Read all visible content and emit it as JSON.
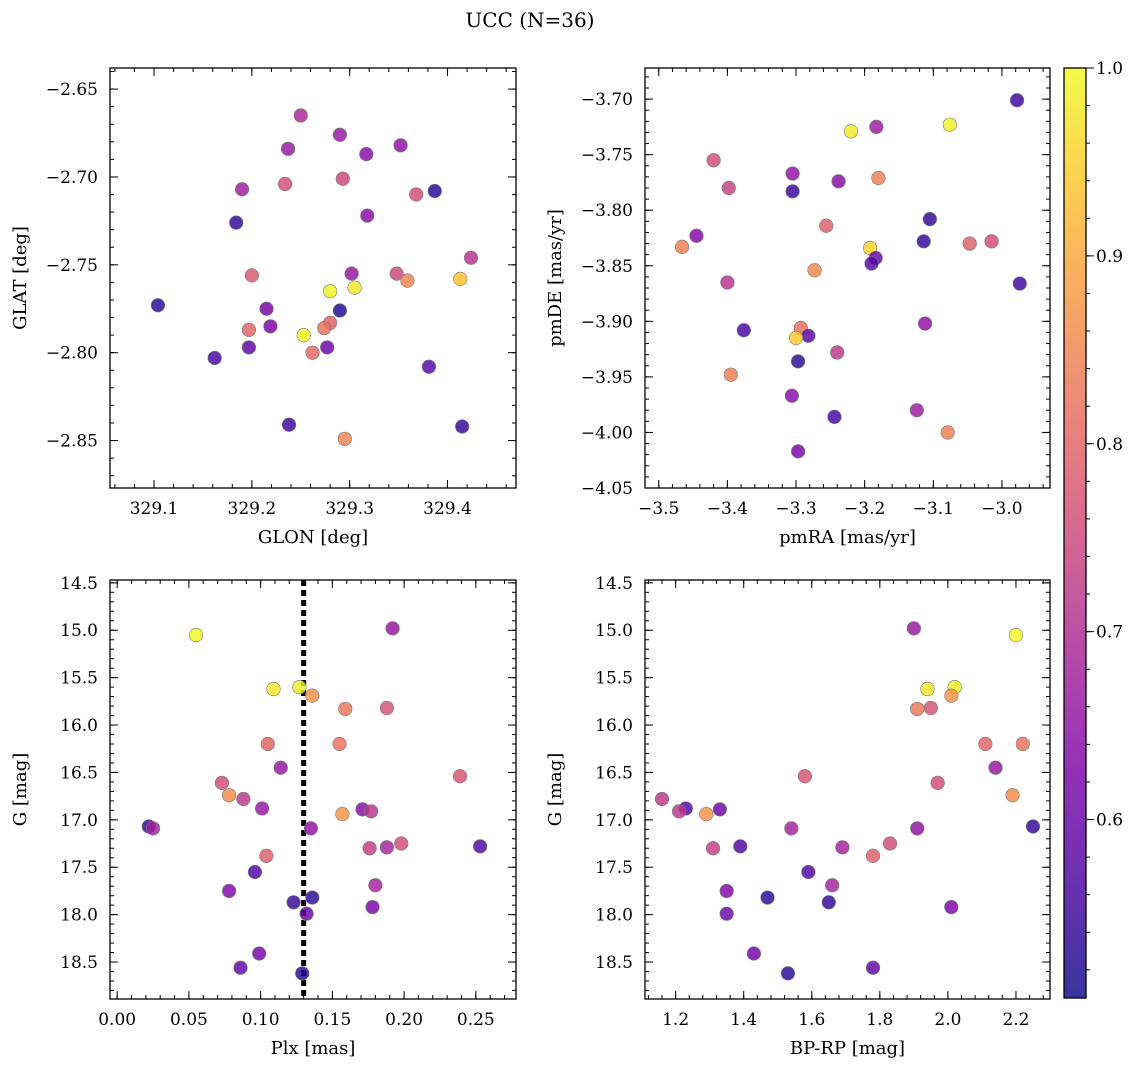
{
  "title": "UCC (N=36)",
  "colors": {
    "cmap": "plasma",
    "marker_edge": "#7a7a7a",
    "vline": "#000000"
  },
  "chart_data": [
    {
      "type": "scatter",
      "xlabel": "GLON [deg]",
      "ylabel": "GLAT [deg]",
      "xlim": [
        329.055,
        329.47
      ],
      "ylim": [
        -2.877,
        -2.638
      ],
      "xticks": [
        329.1,
        329.2,
        329.3,
        329.4
      ],
      "xtick_labels": [
        "329.1",
        "329.2",
        "329.3",
        "329.4"
      ],
      "yticks": [
        -2.65,
        -2.7,
        -2.75,
        -2.8,
        -2.85
      ],
      "ytick_labels": [
        "−2.65",
        "−2.70",
        "−2.75",
        "−2.80",
        "−2.85"
      ],
      "points": [
        {
          "x": 329.25,
          "y": -2.665,
          "c": 0.69
        },
        {
          "x": 329.237,
          "y": -2.684,
          "c": 0.66
        },
        {
          "x": 329.29,
          "y": -2.676,
          "c": 0.66
        },
        {
          "x": 329.317,
          "y": -2.687,
          "c": 0.64
        },
        {
          "x": 329.352,
          "y": -2.682,
          "c": 0.65
        },
        {
          "x": 329.19,
          "y": -2.707,
          "c": 0.67
        },
        {
          "x": 329.234,
          "y": -2.704,
          "c": 0.76
        },
        {
          "x": 329.293,
          "y": -2.701,
          "c": 0.75
        },
        {
          "x": 329.368,
          "y": -2.71,
          "c": 0.76
        },
        {
          "x": 329.387,
          "y": -2.708,
          "c": 0.53
        },
        {
          "x": 329.184,
          "y": -2.726,
          "c": 0.54
        },
        {
          "x": 329.318,
          "y": -2.722,
          "c": 0.64
        },
        {
          "x": 329.424,
          "y": -2.746,
          "c": 0.71
        },
        {
          "x": 329.2,
          "y": -2.756,
          "c": 0.78
        },
        {
          "x": 329.302,
          "y": -2.755,
          "c": 0.66
        },
        {
          "x": 329.348,
          "y": -2.755,
          "c": 0.75
        },
        {
          "x": 329.359,
          "y": -2.759,
          "c": 0.85
        },
        {
          "x": 329.413,
          "y": -2.758,
          "c": 0.93
        },
        {
          "x": 329.305,
          "y": -2.763,
          "c": 0.98
        },
        {
          "x": 329.28,
          "y": -2.765,
          "c": 0.99
        },
        {
          "x": 329.104,
          "y": -2.773,
          "c": 0.53
        },
        {
          "x": 329.215,
          "y": -2.775,
          "c": 0.62
        },
        {
          "x": 329.29,
          "y": -2.776,
          "c": 0.52
        },
        {
          "x": 329.28,
          "y": -2.783,
          "c": 0.79
        },
        {
          "x": 329.274,
          "y": -2.786,
          "c": 0.82
        },
        {
          "x": 329.197,
          "y": -2.787,
          "c": 0.8
        },
        {
          "x": 329.219,
          "y": -2.785,
          "c": 0.62
        },
        {
          "x": 329.253,
          "y": -2.79,
          "c": 1.0
        },
        {
          "x": 329.197,
          "y": -2.797,
          "c": 0.58
        },
        {
          "x": 329.277,
          "y": -2.797,
          "c": 0.6
        },
        {
          "x": 329.262,
          "y": -2.8,
          "c": 0.81
        },
        {
          "x": 329.162,
          "y": -2.803,
          "c": 0.56
        },
        {
          "x": 329.381,
          "y": -2.808,
          "c": 0.58
        },
        {
          "x": 329.238,
          "y": -2.841,
          "c": 0.55
        },
        {
          "x": 329.415,
          "y": -2.842,
          "c": 0.54
        },
        {
          "x": 329.295,
          "y": -2.849,
          "c": 0.85
        }
      ]
    },
    {
      "type": "scatter",
      "xlabel": "pmRA [mas/yr]",
      "ylabel": "pmDE [mas/yr]",
      "xlim": [
        -3.52,
        -2.93
      ],
      "ylim": [
        -4.05,
        -3.672
      ],
      "xticks": [
        -3.5,
        -3.4,
        -3.3,
        -3.2,
        -3.1,
        -3.0
      ],
      "xtick_labels": [
        "−3.5",
        "−3.4",
        "−3.3",
        "−3.2",
        "−3.1",
        "−3.0"
      ],
      "yticks": [
        -3.7,
        -3.75,
        -3.8,
        -3.85,
        -3.9,
        -3.95,
        -4.0,
        -4.05
      ],
      "ytick_labels": [
        "−3.70",
        "−3.75",
        "−3.80",
        "−3.85",
        "−3.90",
        "−3.95",
        "−4.00",
        "−4.05"
      ],
      "points": [
        {
          "x": -2.978,
          "y": -3.701,
          "c": 0.55
        },
        {
          "x": -3.076,
          "y": -3.723,
          "c": 0.99
        },
        {
          "x": -3.22,
          "y": -3.729,
          "c": 0.98
        },
        {
          "x": -3.183,
          "y": -3.725,
          "c": 0.67
        },
        {
          "x": -3.42,
          "y": -3.755,
          "c": 0.76
        },
        {
          "x": -3.305,
          "y": -3.767,
          "c": 0.65
        },
        {
          "x": -3.238,
          "y": -3.774,
          "c": 0.64
        },
        {
          "x": -3.18,
          "y": -3.771,
          "c": 0.84
        },
        {
          "x": -3.398,
          "y": -3.78,
          "c": 0.74
        },
        {
          "x": -3.305,
          "y": -3.783,
          "c": 0.54
        },
        {
          "x": -3.105,
          "y": -3.808,
          "c": 0.54
        },
        {
          "x": -3.256,
          "y": -3.814,
          "c": 0.79
        },
        {
          "x": -3.466,
          "y": -3.833,
          "c": 0.84
        },
        {
          "x": -3.445,
          "y": -3.823,
          "c": 0.63
        },
        {
          "x": -3.114,
          "y": -3.828,
          "c": 0.54
        },
        {
          "x": -3.015,
          "y": -3.828,
          "c": 0.76
        },
        {
          "x": -3.047,
          "y": -3.83,
          "c": 0.79
        },
        {
          "x": -3.192,
          "y": -3.834,
          "c": 0.96
        },
        {
          "x": -3.184,
          "y": -3.843,
          "c": 0.6
        },
        {
          "x": -3.19,
          "y": -3.848,
          "c": 0.58
        },
        {
          "x": -3.273,
          "y": -3.854,
          "c": 0.86
        },
        {
          "x": -2.974,
          "y": -3.866,
          "c": 0.55
        },
        {
          "x": -3.4,
          "y": -3.865,
          "c": 0.71
        },
        {
          "x": -3.112,
          "y": -3.902,
          "c": 0.65
        },
        {
          "x": -3.376,
          "y": -3.908,
          "c": 0.56
        },
        {
          "x": -3.293,
          "y": -3.906,
          "c": 0.82
        },
        {
          "x": -3.282,
          "y": -3.913,
          "c": 0.58
        },
        {
          "x": -3.3,
          "y": -3.915,
          "c": 0.94
        },
        {
          "x": -3.24,
          "y": -3.928,
          "c": 0.72
        },
        {
          "x": -3.297,
          "y": -3.936,
          "c": 0.53
        },
        {
          "x": -3.395,
          "y": -3.948,
          "c": 0.84
        },
        {
          "x": -3.306,
          "y": -3.967,
          "c": 0.64
        },
        {
          "x": -3.124,
          "y": -3.98,
          "c": 0.67
        },
        {
          "x": -3.244,
          "y": -3.986,
          "c": 0.56
        },
        {
          "x": -3.079,
          "y": -4.0,
          "c": 0.84
        },
        {
          "x": -3.297,
          "y": -4.017,
          "c": 0.62
        }
      ]
    },
    {
      "type": "scatter",
      "xlabel": "Plx [mas]",
      "ylabel": "G [mag]",
      "xlim": [
        -0.005,
        0.278
      ],
      "ylim": [
        18.89,
        14.47
      ],
      "vline": 0.13,
      "xticks": [
        0.0,
        0.05,
        0.1,
        0.15,
        0.2,
        0.25
      ],
      "xtick_labels": [
        "0.00",
        "0.05",
        "0.10",
        "0.15",
        "0.20",
        "0.25"
      ],
      "yticks": [
        14.5,
        15.0,
        15.5,
        16.0,
        16.5,
        17.0,
        17.5,
        18.0,
        18.5
      ],
      "ytick_labels": [
        "14.5",
        "15.0",
        "15.5",
        "16.0",
        "16.5",
        "17.0",
        "17.5",
        "18.0",
        "18.5"
      ],
      "points": [
        {
          "x": 0.055,
          "y": 15.05,
          "c": 1.0
        },
        {
          "x": 0.192,
          "y": 14.98,
          "c": 0.66
        },
        {
          "x": 0.127,
          "y": 15.6,
          "c": 0.99
        },
        {
          "x": 0.109,
          "y": 15.62,
          "c": 0.98
        },
        {
          "x": 0.136,
          "y": 15.69,
          "c": 0.87
        },
        {
          "x": 0.159,
          "y": 15.83,
          "c": 0.83
        },
        {
          "x": 0.188,
          "y": 15.82,
          "c": 0.77
        },
        {
          "x": 0.105,
          "y": 16.2,
          "c": 0.8
        },
        {
          "x": 0.155,
          "y": 16.2,
          "c": 0.82
        },
        {
          "x": 0.114,
          "y": 16.45,
          "c": 0.66
        },
        {
          "x": 0.239,
          "y": 16.54,
          "c": 0.77
        },
        {
          "x": 0.073,
          "y": 16.61,
          "c": 0.76
        },
        {
          "x": 0.078,
          "y": 16.74,
          "c": 0.86
        },
        {
          "x": 0.088,
          "y": 16.78,
          "c": 0.72
        },
        {
          "x": 0.101,
          "y": 16.88,
          "c": 0.66
        },
        {
          "x": 0.171,
          "y": 16.89,
          "c": 0.64
        },
        {
          "x": 0.177,
          "y": 16.91,
          "c": 0.72
        },
        {
          "x": 0.157,
          "y": 16.94,
          "c": 0.87
        },
        {
          "x": 0.022,
          "y": 17.07,
          "c": 0.54
        },
        {
          "x": 0.025,
          "y": 17.09,
          "c": 0.68
        },
        {
          "x": 0.135,
          "y": 17.09,
          "c": 0.65
        },
        {
          "x": 0.198,
          "y": 17.25,
          "c": 0.76
        },
        {
          "x": 0.176,
          "y": 17.3,
          "c": 0.73
        },
        {
          "x": 0.188,
          "y": 17.29,
          "c": 0.68
        },
        {
          "x": 0.253,
          "y": 17.28,
          "c": 0.57
        },
        {
          "x": 0.104,
          "y": 17.38,
          "c": 0.79
        },
        {
          "x": 0.096,
          "y": 17.55,
          "c": 0.57
        },
        {
          "x": 0.18,
          "y": 17.69,
          "c": 0.68
        },
        {
          "x": 0.078,
          "y": 17.75,
          "c": 0.63
        },
        {
          "x": 0.136,
          "y": 17.82,
          "c": 0.53
        },
        {
          "x": 0.123,
          "y": 17.87,
          "c": 0.54
        },
        {
          "x": 0.178,
          "y": 17.92,
          "c": 0.62
        },
        {
          "x": 0.132,
          "y": 17.99,
          "c": 0.6
        },
        {
          "x": 0.099,
          "y": 18.41,
          "c": 0.61
        },
        {
          "x": 0.086,
          "y": 18.56,
          "c": 0.59
        },
        {
          "x": 0.129,
          "y": 18.62,
          "c": 0.53
        }
      ]
    },
    {
      "type": "scatter",
      "xlabel": "BP-RP [mag]",
      "ylabel": "G [mag]",
      "xlim": [
        1.11,
        2.3
      ],
      "ylim": [
        18.89,
        14.47
      ],
      "xticks": [
        1.2,
        1.4,
        1.6,
        1.8,
        2.0,
        2.2
      ],
      "xtick_labels": [
        "1.2",
        "1.4",
        "1.6",
        "1.8",
        "2.0",
        "2.2"
      ],
      "yticks": [
        14.5,
        15.0,
        15.5,
        16.0,
        16.5,
        17.0,
        17.5,
        18.0,
        18.5
      ],
      "ytick_labels": [
        "14.5",
        "15.0",
        "15.5",
        "16.0",
        "16.5",
        "17.0",
        "17.5",
        "18.0",
        "18.5"
      ],
      "points": [
        {
          "x": 1.9,
          "y": 14.98,
          "c": 0.66
        },
        {
          "x": 2.2,
          "y": 15.05,
          "c": 1.0
        },
        {
          "x": 1.94,
          "y": 15.62,
          "c": 0.98
        },
        {
          "x": 2.02,
          "y": 15.6,
          "c": 0.99
        },
        {
          "x": 2.01,
          "y": 15.69,
          "c": 0.87
        },
        {
          "x": 1.91,
          "y": 15.83,
          "c": 0.83
        },
        {
          "x": 1.95,
          "y": 15.82,
          "c": 0.77
        },
        {
          "x": 2.11,
          "y": 16.2,
          "c": 0.8
        },
        {
          "x": 2.22,
          "y": 16.2,
          "c": 0.82
        },
        {
          "x": 2.14,
          "y": 16.45,
          "c": 0.66
        },
        {
          "x": 1.58,
          "y": 16.54,
          "c": 0.77
        },
        {
          "x": 1.97,
          "y": 16.61,
          "c": 0.76
        },
        {
          "x": 2.19,
          "y": 16.74,
          "c": 0.86
        },
        {
          "x": 1.16,
          "y": 16.78,
          "c": 0.72
        },
        {
          "x": 1.23,
          "y": 16.88,
          "c": 0.57
        },
        {
          "x": 1.33,
          "y": 16.89,
          "c": 0.6
        },
        {
          "x": 1.21,
          "y": 16.91,
          "c": 0.72
        },
        {
          "x": 1.29,
          "y": 16.94,
          "c": 0.87
        },
        {
          "x": 2.25,
          "y": 17.07,
          "c": 0.54
        },
        {
          "x": 1.54,
          "y": 17.09,
          "c": 0.68
        },
        {
          "x": 1.91,
          "y": 17.09,
          "c": 0.65
        },
        {
          "x": 1.83,
          "y": 17.25,
          "c": 0.76
        },
        {
          "x": 1.31,
          "y": 17.3,
          "c": 0.73
        },
        {
          "x": 1.69,
          "y": 17.29,
          "c": 0.68
        },
        {
          "x": 1.39,
          "y": 17.28,
          "c": 0.57
        },
        {
          "x": 1.78,
          "y": 17.38,
          "c": 0.79
        },
        {
          "x": 1.59,
          "y": 17.55,
          "c": 0.57
        },
        {
          "x": 1.66,
          "y": 17.69,
          "c": 0.68
        },
        {
          "x": 1.35,
          "y": 17.75,
          "c": 0.63
        },
        {
          "x": 1.47,
          "y": 17.82,
          "c": 0.53
        },
        {
          "x": 1.65,
          "y": 17.87,
          "c": 0.54
        },
        {
          "x": 2.01,
          "y": 17.92,
          "c": 0.62
        },
        {
          "x": 1.35,
          "y": 17.99,
          "c": 0.6
        },
        {
          "x": 1.43,
          "y": 18.41,
          "c": 0.61
        },
        {
          "x": 1.78,
          "y": 18.56,
          "c": 0.59
        },
        {
          "x": 1.53,
          "y": 18.62,
          "c": 0.53
        }
      ]
    }
  ],
  "colorbar": {
    "cmap": "plasma",
    "vmin": 0.505,
    "vmax": 1.0,
    "ticks": [
      0.6,
      0.7,
      0.8,
      0.9,
      1.0
    ],
    "tick_labels": [
      "0.6",
      "0.7",
      "0.8",
      "0.9",
      "1.0"
    ]
  }
}
